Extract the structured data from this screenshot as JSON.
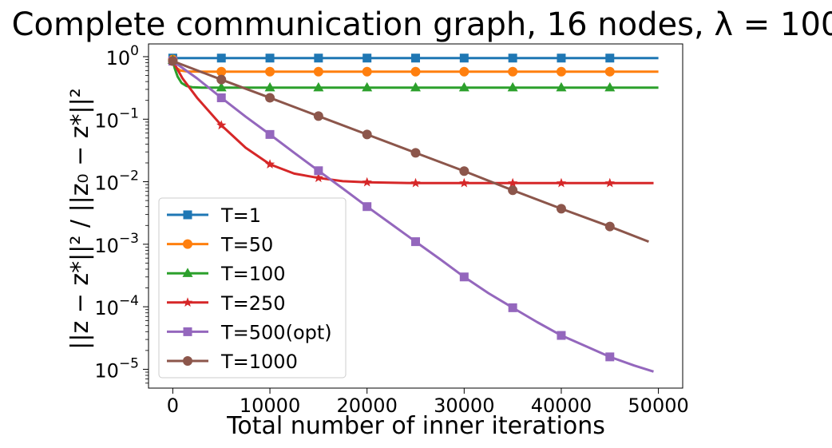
{
  "chart_data": {
    "type": "line",
    "title": "Complete communication graph, 16 nodes, λ = 100",
    "xlabel": "Total number of inner iterations",
    "ylabel": "||z − z*||² / ||z₀ − z*||²",
    "yscale": "log",
    "xlim": [
      -2500,
      52500
    ],
    "ylim": [
      5e-06,
      1.6
    ],
    "xticks": [
      0,
      10000,
      20000,
      30000,
      40000,
      50000
    ],
    "xtick_labels": [
      "0",
      "10000",
      "20000",
      "30000",
      "40000",
      "50000"
    ],
    "yticks": [
      1e-05,
      0.0001,
      0.001,
      0.01,
      0.1,
      1
    ],
    "ytick_labels": [
      {
        "base": "10",
        "exp": "−5"
      },
      {
        "base": "10",
        "exp": "−4"
      },
      {
        "base": "10",
        "exp": "−3"
      },
      {
        "base": "10",
        "exp": "−2"
      },
      {
        "base": "10",
        "exp": "−1"
      },
      {
        "base": "10",
        "exp": "0"
      }
    ],
    "grid": false,
    "legend_position": "lower-left",
    "series": [
      {
        "name": "T=1",
        "color": "#1f77b4",
        "marker": "square",
        "x": [
          0,
          50000
        ],
        "y": [
          0.95,
          0.95
        ],
        "markers_x": [
          0,
          5000,
          10000,
          15000,
          20000,
          25000,
          30000,
          35000,
          40000,
          45000
        ],
        "markers_y": [
          0.95,
          0.95,
          0.95,
          0.95,
          0.95,
          0.95,
          0.95,
          0.95,
          0.95,
          0.95
        ]
      },
      {
        "name": "T=50",
        "color": "#ff7f0e",
        "marker": "circle",
        "x": [
          0,
          150,
          400,
          800,
          1500,
          3000,
          50000
        ],
        "y": [
          0.9,
          0.78,
          0.66,
          0.6,
          0.58,
          0.575,
          0.575
        ],
        "markers_x": [
          0,
          5000,
          10000,
          15000,
          20000,
          25000,
          30000,
          35000,
          40000,
          45000
        ],
        "markers_y": [
          0.9,
          0.575,
          0.575,
          0.575,
          0.575,
          0.575,
          0.575,
          0.575,
          0.575,
          0.575
        ]
      },
      {
        "name": "T=100",
        "color": "#2ca02c",
        "marker": "triangle",
        "x": [
          0,
          200,
          500,
          900,
          1400,
          2000,
          3000,
          5000,
          50000
        ],
        "y": [
          0.88,
          0.65,
          0.48,
          0.38,
          0.34,
          0.325,
          0.32,
          0.32,
          0.32
        ],
        "markers_x": [
          0,
          5000,
          10000,
          15000,
          20000,
          25000,
          30000,
          35000,
          40000,
          45000
        ],
        "markers_y": [
          0.88,
          0.32,
          0.32,
          0.32,
          0.32,
          0.32,
          0.32,
          0.32,
          0.32,
          0.32
        ]
      },
      {
        "name": "T=250",
        "color": "#d62728",
        "marker": "star",
        "x": [
          0,
          1000,
          2500,
          5000,
          7500,
          10000,
          12500,
          15000,
          17500,
          20000,
          25000,
          30000,
          35000,
          40000,
          45000,
          49500
        ],
        "y": [
          0.85,
          0.45,
          0.22,
          0.08,
          0.035,
          0.019,
          0.0135,
          0.0115,
          0.0102,
          0.0098,
          0.0095,
          0.0095,
          0.0095,
          0.0095,
          0.0095,
          0.0095
        ],
        "markers_x": [
          0,
          5000,
          10000,
          15000,
          20000,
          25000,
          30000,
          35000,
          40000,
          45000
        ],
        "markers_y": [
          0.85,
          0.08,
          0.019,
          0.0115,
          0.0098,
          0.0095,
          0.0095,
          0.0095,
          0.0095,
          0.0095
        ]
      },
      {
        "name": "T=500(opt)",
        "color": "#9467bd",
        "marker": "square",
        "x": [
          0,
          2500,
          5000,
          7500,
          10000,
          12500,
          15000,
          17500,
          20000,
          22500,
          25000,
          27500,
          30000,
          32500,
          35000,
          37500,
          40000,
          42500,
          45000,
          47500,
          49500
        ],
        "y": [
          0.85,
          0.45,
          0.22,
          0.11,
          0.057,
          0.029,
          0.015,
          0.0078,
          0.004,
          0.0021,
          0.0011,
          0.00058,
          0.0003,
          0.000165,
          9.65e-05,
          5.7e-05,
          3.48e-05,
          2.35e-05,
          1.58e-05,
          1.15e-05,
          9.2e-06
        ],
        "markers_x": [
          0,
          5000,
          10000,
          15000,
          20000,
          25000,
          30000,
          35000,
          40000,
          45000
        ],
        "markers_y": [
          0.85,
          0.22,
          0.057,
          0.015,
          0.004,
          0.0011,
          0.0003,
          9.65e-05,
          3.48e-05,
          1.58e-05
        ]
      },
      {
        "name": "T=1000",
        "color": "#8c564b",
        "marker": "circle",
        "x": [
          0,
          5000,
          10000,
          15000,
          20000,
          25000,
          30000,
          35000,
          40000,
          45000,
          49000
        ],
        "y": [
          0.85,
          0.43,
          0.22,
          0.112,
          0.057,
          0.029,
          0.0148,
          0.0073,
          0.0037,
          0.00192,
          0.0011
        ],
        "markers_x": [
          0,
          5000,
          10000,
          15000,
          20000,
          25000,
          30000,
          35000,
          40000,
          45000
        ],
        "markers_y": [
          0.85,
          0.43,
          0.22,
          0.112,
          0.057,
          0.029,
          0.0148,
          0.0073,
          0.0037,
          0.00192
        ]
      }
    ]
  }
}
